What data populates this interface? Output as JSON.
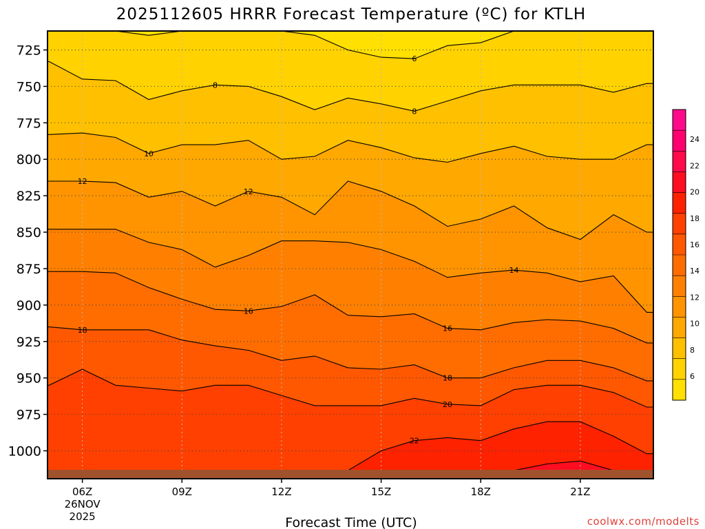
{
  "title": "2025112605 HRRR Forecast Temperature (ºC) for KTLH",
  "credit": "coolwx.com/modelts",
  "chart_data": {
    "type": "contour",
    "title": "2025112605 HRRR Forecast Temperature (ºC) for KTLH",
    "xlabel": "Forecast Time (UTC)",
    "ylabel": "",
    "x_ticks": [
      "06Z",
      "09Z",
      "12Z",
      "15Z",
      "18Z",
      "21Z"
    ],
    "x_tick_date": [
      "26NOV",
      "2025"
    ],
    "y_ticks": [
      725,
      750,
      775,
      800,
      825,
      850,
      875,
      900,
      925,
      950,
      975,
      1000
    ],
    "x_hours": [
      5,
      6,
      7,
      8,
      9,
      10,
      11,
      12,
      13,
      14,
      15,
      16,
      17,
      18,
      19,
      20,
      21,
      22,
      23
    ],
    "ylim_hpa": [
      712,
      1013
    ],
    "ground_level_hpa": 1013,
    "colorbar_ticks": [
      6,
      8,
      10,
      12,
      14,
      16,
      18,
      20,
      22,
      24
    ],
    "colors": {
      "ground": "#a0522d",
      "bands": [
        "#ffe000",
        "#ffd200",
        "#ffc000",
        "#ffa800",
        "#ff9400",
        "#ff8000",
        "#ff6d00",
        "#ff5800",
        "#ff4000",
        "#ff2200",
        "#ff0d20",
        "#ff0a4a",
        "#ff0070",
        "#ff0a8a"
      ]
    },
    "contour_levels": [
      {
        "value": 6,
        "label_hours": [
          16
        ],
        "p": [
          712,
          712,
          712,
          715,
          712,
          712,
          712,
          712,
          715,
          725,
          730,
          731,
          722,
          720,
          712,
          712,
          712,
          712,
          712
        ]
      },
      {
        "value": 8,
        "label_hours": [
          10,
          16
        ],
        "p": [
          733,
          745,
          746,
          759,
          753,
          749,
          750,
          757,
          766,
          758,
          762,
          767,
          760,
          753,
          749,
          749,
          749,
          754,
          748
        ]
      },
      {
        "value": 10,
        "label_hours": [
          8
        ],
        "p": [
          783,
          782,
          785,
          796,
          790,
          790,
          787,
          800,
          798,
          787,
          792,
          799,
          802,
          796,
          791,
          798,
          800,
          800,
          790
        ]
      },
      {
        "value": 12,
        "label_hours": [
          6,
          11
        ],
        "p": [
          815,
          815,
          816,
          826,
          822,
          832,
          822,
          826,
          838,
          815,
          822,
          832,
          846,
          841,
          832,
          847,
          855,
          838,
          850
        ]
      },
      {
        "value": 14,
        "label_hours": [
          19
        ],
        "p": [
          848,
          848,
          848,
          857,
          862,
          874,
          866,
          856,
          856,
          857,
          862,
          870,
          881,
          878,
          876,
          878,
          884,
          880,
          905
        ]
      },
      {
        "value": 16,
        "label_hours": [
          11,
          17
        ],
        "p": [
          877,
          877,
          878,
          888,
          896,
          903,
          904,
          901,
          893,
          907,
          908,
          906,
          916,
          917,
          912,
          910,
          911,
          916,
          926
        ]
      },
      {
        "value": 18,
        "label_hours": [
          6,
          17
        ],
        "p": [
          915,
          917,
          917,
          917,
          924,
          928,
          931,
          938,
          935,
          943,
          944,
          941,
          950,
          950,
          943,
          938,
          938,
          943,
          952
        ]
      },
      {
        "value": 20,
        "label_hours": [
          17
        ],
        "p": [
          955,
          944,
          955,
          957,
          959,
          955,
          955,
          962,
          969,
          969,
          969,
          964,
          968,
          969,
          958,
          955,
          955,
          960,
          970
        ]
      },
      {
        "value": 22,
        "label_hours": [
          16
        ],
        "p": [
          1013,
          1013,
          1013,
          1013,
          1013,
          1013,
          1013,
          1013,
          1013,
          1013,
          1000,
          993,
          991,
          993,
          985,
          980,
          980,
          990,
          1002
        ]
      },
      {
        "value": 24,
        "label_hours": [],
        "p": [
          1013,
          1013,
          1013,
          1013,
          1013,
          1013,
          1013,
          1013,
          1013,
          1013,
          1013,
          1013,
          1013,
          1013,
          1013,
          1009,
          1007,
          1013,
          1013
        ]
      }
    ]
  }
}
